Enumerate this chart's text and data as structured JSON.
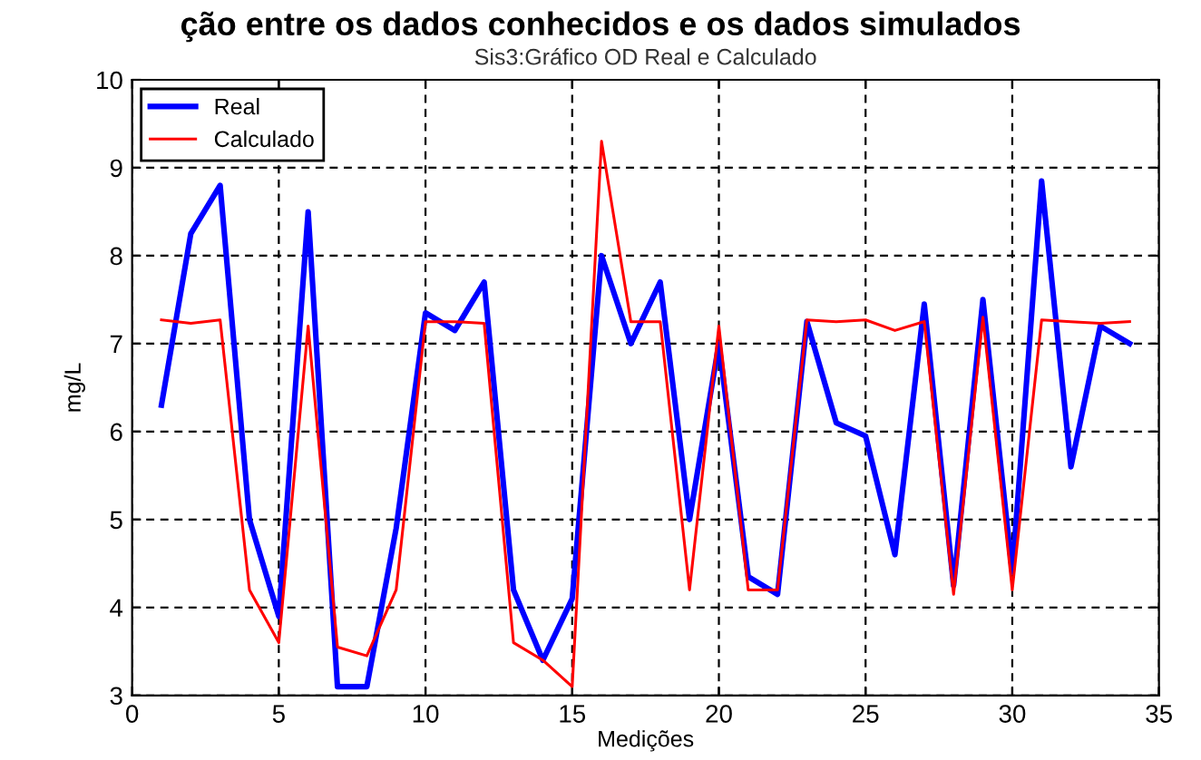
{
  "chart_data": {
    "type": "line",
    "title": "Sis3:Gráfico OD Real e Calculado",
    "xlabel": "Medições",
    "ylabel": "mg/L",
    "annotations": [
      "ção entre os dados conhecidos e os dados simulados"
    ],
    "x": [
      1,
      2,
      3,
      4,
      5,
      6,
      7,
      8,
      9,
      10,
      11,
      12,
      13,
      14,
      15,
      16,
      17,
      18,
      19,
      20,
      21,
      22,
      23,
      24,
      25,
      26,
      27,
      28,
      29,
      30,
      31,
      32,
      33,
      34
    ],
    "series": [
      {
        "name": "Real",
        "color": "#0000ff",
        "values": [
          6.3,
          8.25,
          8.8,
          5.0,
          3.9,
          8.5,
          3.1,
          3.1,
          4.9,
          7.35,
          7.15,
          7.7,
          4.2,
          3.4,
          4.1,
          8.0,
          7.0,
          7.7,
          5.0,
          7.0,
          4.35,
          4.15,
          7.25,
          6.1,
          5.95,
          4.6,
          7.45,
          4.25,
          7.5,
          4.4,
          8.85,
          5.6,
          7.2,
          7.0
        ]
      },
      {
        "name": "Calculado",
        "color": "#ff0000",
        "values": [
          7.27,
          7.23,
          7.27,
          4.2,
          3.6,
          7.2,
          3.55,
          3.45,
          4.2,
          7.25,
          7.25,
          7.23,
          3.6,
          3.4,
          3.1,
          9.3,
          7.25,
          7.25,
          4.2,
          7.2,
          4.2,
          4.2,
          7.27,
          7.25,
          7.27,
          7.15,
          7.25,
          4.15,
          7.3,
          4.2,
          7.27,
          7.25,
          7.23,
          7.25
        ]
      }
    ],
    "xlim": [
      0,
      35
    ],
    "xticks": [
      0,
      5,
      10,
      15,
      20,
      25,
      30,
      35
    ],
    "ylim": [
      3,
      10
    ],
    "yticks": [
      3,
      4,
      5,
      6,
      7,
      8,
      9,
      10
    ],
    "grid": true,
    "legend": "top left",
    "line_style": "solid",
    "marker": "none"
  }
}
